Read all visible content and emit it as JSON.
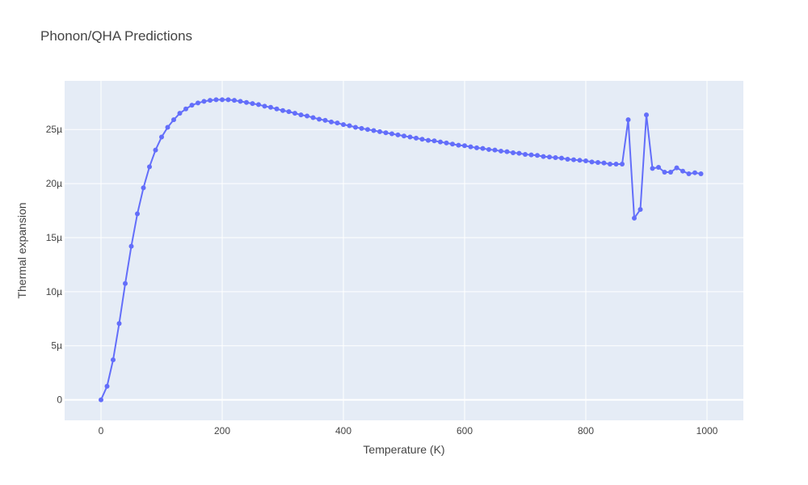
{
  "chart_data": {
    "type": "line",
    "title": "Phonon/QHA Predictions",
    "xlabel": "Temperature (K)",
    "ylabel": "Thermal expansion",
    "xlim": [
      -60,
      1060
    ],
    "ylim": [
      -1.9e-06,
      2.95e-05
    ],
    "x_ticks": [
      0,
      200,
      400,
      600,
      800,
      1000
    ],
    "x_tick_labels": [
      "0",
      "200",
      "400",
      "600",
      "800",
      "1000"
    ],
    "y_ticks": [
      0,
      5e-06,
      1e-05,
      1.5e-05,
      2e-05,
      2.5e-05
    ],
    "y_tick_labels": [
      "0",
      "5µ",
      "10µ",
      "15µ",
      "20µ",
      "25µ"
    ],
    "grid": true,
    "series_color": "#636efa",
    "plot_bg": "#e5ecf6",
    "series": [
      {
        "mode": "lines+markers",
        "x": [
          0,
          10,
          20,
          30,
          40,
          50,
          60,
          70,
          80,
          90,
          100,
          110,
          120,
          130,
          140,
          150,
          160,
          170,
          180,
          190,
          200,
          210,
          220,
          230,
          240,
          250,
          260,
          270,
          280,
          290,
          300,
          310,
          320,
          330,
          340,
          350,
          360,
          370,
          380,
          390,
          400,
          410,
          420,
          430,
          440,
          450,
          460,
          470,
          480,
          490,
          500,
          510,
          520,
          530,
          540,
          550,
          560,
          570,
          580,
          590,
          600,
          610,
          620,
          630,
          640,
          650,
          660,
          670,
          680,
          690,
          700,
          710,
          720,
          730,
          740,
          750,
          760,
          770,
          780,
          790,
          800,
          810,
          820,
          830,
          840,
          850,
          860,
          870,
          880,
          890,
          900,
          910,
          920,
          930,
          940,
          950,
          960,
          970,
          980,
          990
        ],
        "y": [
          0,
          1.25e-06,
          3.7e-06,
          7.05e-06,
          1.075e-05,
          1.42e-05,
          1.72e-05,
          1.96e-05,
          2.155e-05,
          2.31e-05,
          2.43e-05,
          2.52e-05,
          2.59e-05,
          2.65e-05,
          2.69e-05,
          2.725e-05,
          2.745e-05,
          2.76e-05,
          2.77e-05,
          2.775e-05,
          2.775e-05,
          2.775e-05,
          2.77e-05,
          2.76e-05,
          2.75e-05,
          2.74e-05,
          2.73e-05,
          2.715e-05,
          2.705e-05,
          2.69e-05,
          2.675e-05,
          2.665e-05,
          2.65e-05,
          2.635e-05,
          2.625e-05,
          2.61e-05,
          2.595e-05,
          2.585e-05,
          2.57e-05,
          2.56e-05,
          2.545e-05,
          2.535e-05,
          2.52e-05,
          2.51e-05,
          2.5e-05,
          2.49e-05,
          2.48e-05,
          2.47e-05,
          2.46e-05,
          2.45e-05,
          2.44e-05,
          2.43e-05,
          2.42e-05,
          2.41e-05,
          2.4e-05,
          2.395e-05,
          2.385e-05,
          2.375e-05,
          2.365e-05,
          2.355e-05,
          2.35e-05,
          2.34e-05,
          2.33e-05,
          2.325e-05,
          2.315e-05,
          2.31e-05,
          2.3e-05,
          2.295e-05,
          2.285e-05,
          2.28e-05,
          2.27e-05,
          2.265e-05,
          2.26e-05,
          2.25e-05,
          2.245e-05,
          2.24e-05,
          2.235e-05,
          2.225e-05,
          2.22e-05,
          2.215e-05,
          2.21e-05,
          2.2e-05,
          2.195e-05,
          2.19e-05,
          2.18e-05,
          2.18e-05,
          2.18e-05,
          2.59e-05,
          1.68e-05,
          1.76e-05,
          2.635e-05,
          2.14e-05,
          2.15e-05,
          2.105e-05,
          2.105e-05,
          2.145e-05,
          2.115e-05,
          2.09e-05,
          2.1e-05,
          2.09e-05
        ]
      }
    ]
  }
}
